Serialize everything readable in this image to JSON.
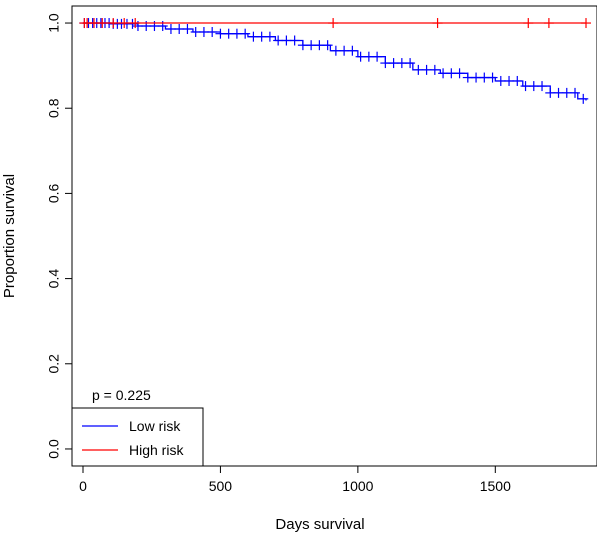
{
  "chart_data": {
    "type": "line",
    "xlabel": "Days survival",
    "ylabel": "Proportion survival",
    "xlim": [
      -40,
      1870
    ],
    "ylim": [
      -0.04,
      1.04
    ],
    "x_ticks": [
      0,
      500,
      1000,
      1500
    ],
    "x_tick_labels": [
      "0",
      "500",
      "1000",
      "1500"
    ],
    "y_ticks": [
      0.0,
      0.2,
      0.4,
      0.6,
      0.8,
      1.0
    ],
    "y_tick_labels": [
      "0.0",
      "0.2",
      "0.4",
      "0.6",
      "0.8",
      "1.0"
    ],
    "annotation": "p = 0.225",
    "legend_position": "bottom-left",
    "series": [
      {
        "name": "Low risk",
        "color": "#0000ff",
        "x": [
          0,
          100,
          200,
          300,
          400,
          500,
          600,
          700,
          800,
          900,
          1000,
          1100,
          1200,
          1300,
          1400,
          1500,
          1600,
          1700,
          1800,
          1830
        ],
        "y": [
          1.0,
          0.998,
          0.993,
          0.986,
          0.979,
          0.975,
          0.968,
          0.959,
          0.948,
          0.935,
          0.921,
          0.906,
          0.89,
          0.882,
          0.872,
          0.864,
          0.852,
          0.836,
          0.822,
          0.818
        ],
        "censor_x": [
          5,
          20,
          35,
          50,
          65,
          80,
          95,
          110,
          125,
          140,
          160,
          180,
          200,
          230,
          260,
          290,
          320,
          350,
          380,
          410,
          440,
          470,
          500,
          530,
          560,
          590,
          620,
          650,
          680,
          710,
          740,
          770,
          800,
          830,
          860,
          890,
          920,
          950,
          980,
          1010,
          1040,
          1070,
          1100,
          1130,
          1160,
          1190,
          1220,
          1250,
          1280,
          1310,
          1340,
          1370,
          1400,
          1430,
          1460,
          1490,
          1520,
          1550,
          1580,
          1610,
          1640,
          1670,
          1700,
          1730,
          1760,
          1790,
          1820
        ]
      },
      {
        "name": "High risk",
        "color": "#ff0000",
        "x": [
          0,
          1830
        ],
        "y": [
          1.0,
          1.0
        ],
        "censor_x": [
          5,
          15,
          40,
          70,
          110,
          150,
          190,
          910,
          1290,
          1620,
          1695,
          1830
        ]
      }
    ]
  }
}
